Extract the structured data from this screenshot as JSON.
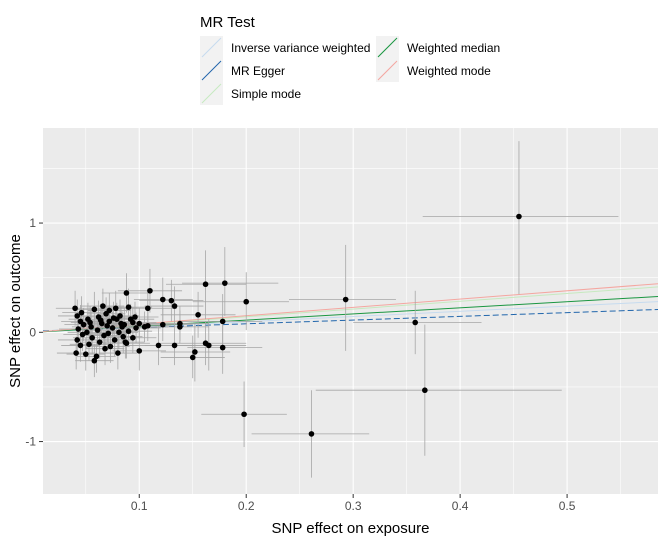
{
  "chart_data": {
    "type": "scatter",
    "title": "",
    "xlabel": "SNP effect on exposure",
    "ylabel": "SNP effect on outcome",
    "xlim": [
      0.01,
      0.585
    ],
    "ylim": [
      -1.48,
      1.87
    ],
    "x_ticks": [
      0.1,
      0.2,
      0.3,
      0.4,
      0.5
    ],
    "y_ticks": [
      -1,
      0,
      1
    ],
    "x_tick_labels": [
      "0.1",
      "0.2",
      "0.3",
      "0.4",
      "0.5"
    ],
    "y_tick_labels": [
      "-1",
      "0",
      "1"
    ],
    "grid": true,
    "legend": {
      "title": "MR Test",
      "placement": "top",
      "entries": [
        {
          "label": "Inverse variance weighted",
          "color": "#c6dbef"
        },
        {
          "label": "MR Egger",
          "color": "#2166ac"
        },
        {
          "label": "Simple mode",
          "color": "#c7e9c0"
        },
        {
          "label": "Weighted median",
          "color": "#1a9641"
        },
        {
          "label": "Weighted mode",
          "color": "#f4a6a0"
        }
      ]
    },
    "lines": [
      {
        "name": "Inverse variance weighted",
        "slope": 0.48,
        "intercept": 0.0,
        "color": "#c6dbef",
        "dashed": false
      },
      {
        "name": "MR Egger",
        "slope": 0.34,
        "intercept": 0.01,
        "color": "#2166ac",
        "dashed": true
      },
      {
        "name": "Simple mode",
        "slope": 0.71,
        "intercept": 0.0,
        "color": "#c7e9c0",
        "dashed": false
      },
      {
        "name": "Weighted median",
        "slope": 0.56,
        "intercept": 0.0,
        "color": "#1a9641",
        "dashed": false
      },
      {
        "name": "Weighted mode",
        "slope": 0.76,
        "intercept": 0.0,
        "color": "#f4a6a0",
        "dashed": false
      }
    ],
    "points": [
      {
        "x": 0.455,
        "y": 1.06,
        "xlo": 0.365,
        "xhi": 0.548,
        "ylo": 0.35,
        "yhi": 1.75
      },
      {
        "x": 0.358,
        "y": 0.09,
        "xlo": 0.3,
        "xhi": 0.42,
        "ylo": -0.2,
        "yhi": 0.38
      },
      {
        "x": 0.367,
        "y": -0.53,
        "xlo": 0.265,
        "xhi": 0.495,
        "ylo": -1.13,
        "yhi": 0.07
      },
      {
        "x": 0.293,
        "y": 0.3,
        "xlo": 0.24,
        "xhi": 0.34,
        "ylo": -0.17,
        "yhi": 0.8
      },
      {
        "x": 0.261,
        "y": -0.93,
        "xlo": 0.205,
        "xhi": 0.315,
        "ylo": -1.33,
        "yhi": -0.53
      },
      {
        "x": 0.198,
        "y": -0.75,
        "xlo": 0.158,
        "xhi": 0.238,
        "ylo": -1.05,
        "yhi": -0.45
      },
      {
        "x": 0.2,
        "y": 0.28,
        "xlo": 0.15,
        "xhi": 0.24,
        "ylo": 0.02,
        "yhi": 0.55
      },
      {
        "x": 0.18,
        "y": 0.45,
        "xlo": 0.14,
        "xhi": 0.23,
        "ylo": 0.15,
        "yhi": 0.78
      },
      {
        "x": 0.162,
        "y": 0.44,
        "xlo": 0.125,
        "xhi": 0.2,
        "ylo": 0.12,
        "yhi": 0.75
      },
      {
        "x": 0.178,
        "y": 0.1,
        "xlo": 0.14,
        "xhi": 0.215,
        "ylo": -0.15,
        "yhi": 0.35
      },
      {
        "x": 0.165,
        "y": -0.12,
        "xlo": 0.13,
        "xhi": 0.2,
        "ylo": -0.35,
        "yhi": 0.12
      },
      {
        "x": 0.178,
        "y": -0.14,
        "xlo": 0.145,
        "xhi": 0.215,
        "ylo": -0.38,
        "yhi": 0.1
      },
      {
        "x": 0.162,
        "y": -0.1,
        "xlo": 0.12,
        "xhi": 0.2,
        "ylo": -0.3,
        "yhi": 0.1
      },
      {
        "x": 0.152,
        "y": -0.18,
        "xlo": 0.12,
        "xhi": 0.185,
        "ylo": -0.45,
        "yhi": 0.08
      },
      {
        "x": 0.15,
        "y": -0.23,
        "xlo": 0.12,
        "xhi": 0.18,
        "ylo": -0.42,
        "yhi": -0.03
      },
      {
        "x": 0.155,
        "y": 0.16,
        "xlo": 0.12,
        "xhi": 0.19,
        "ylo": -0.05,
        "yhi": 0.37
      },
      {
        "x": 0.11,
        "y": 0.38,
        "xlo": 0.08,
        "xhi": 0.14,
        "ylo": 0.18,
        "yhi": 0.58
      },
      {
        "x": 0.122,
        "y": 0.3,
        "xlo": 0.095,
        "xhi": 0.15,
        "ylo": 0.1,
        "yhi": 0.5
      },
      {
        "x": 0.13,
        "y": 0.29,
        "xlo": 0.1,
        "xhi": 0.16,
        "ylo": 0.1,
        "yhi": 0.48
      },
      {
        "x": 0.108,
        "y": 0.22,
        "xlo": 0.08,
        "xhi": 0.135,
        "ylo": 0.05,
        "yhi": 0.4
      },
      {
        "x": 0.133,
        "y": 0.24,
        "xlo": 0.105,
        "xhi": 0.16,
        "ylo": 0.06,
        "yhi": 0.42
      },
      {
        "x": 0.118,
        "y": -0.12,
        "xlo": 0.09,
        "xhi": 0.15,
        "ylo": -0.3,
        "yhi": 0.06
      },
      {
        "x": 0.133,
        "y": -0.12,
        "xlo": 0.105,
        "xhi": 0.16,
        "ylo": -0.3,
        "yhi": 0.06
      },
      {
        "x": 0.1,
        "y": -0.17,
        "xlo": 0.075,
        "xhi": 0.125,
        "ylo": -0.35,
        "yhi": 0.01
      },
      {
        "x": 0.122,
        "y": 0.07,
        "xlo": 0.095,
        "xhi": 0.15,
        "ylo": -0.08,
        "yhi": 0.22
      },
      {
        "x": 0.108,
        "y": 0.06,
        "xlo": 0.085,
        "xhi": 0.13,
        "ylo": -0.08,
        "yhi": 0.2
      },
      {
        "x": 0.138,
        "y": 0.08,
        "xlo": 0.11,
        "xhi": 0.165,
        "ylo": -0.08,
        "yhi": 0.24
      },
      {
        "x": 0.138,
        "y": 0.05,
        "xlo": 0.11,
        "xhi": 0.165,
        "ylo": -0.1,
        "yhi": 0.2
      },
      {
        "x": 0.088,
        "y": 0.36,
        "xlo": 0.065,
        "xhi": 0.11,
        "ylo": 0.18,
        "yhi": 0.54
      },
      {
        "x": 0.09,
        "y": 0.23,
        "xlo": 0.068,
        "xhi": 0.112,
        "ylo": 0.06,
        "yhi": 0.4
      },
      {
        "x": 0.096,
        "y": 0.14,
        "xlo": 0.074,
        "xhi": 0.118,
        "ylo": 0.0,
        "yhi": 0.28
      },
      {
        "x": 0.094,
        "y": 0.09,
        "xlo": 0.072,
        "xhi": 0.116,
        "ylo": -0.05,
        "yhi": 0.23
      },
      {
        "x": 0.097,
        "y": 0.04,
        "xlo": 0.075,
        "xhi": 0.12,
        "ylo": -0.1,
        "yhi": 0.18
      },
      {
        "x": 0.09,
        "y": 0.01,
        "xlo": 0.068,
        "xhi": 0.112,
        "ylo": -0.13,
        "yhi": 0.15
      },
      {
        "x": 0.094,
        "y": -0.05,
        "xlo": 0.072,
        "xhi": 0.116,
        "ylo": -0.19,
        "yhi": 0.09
      },
      {
        "x": 0.088,
        "y": -0.1,
        "xlo": 0.066,
        "xhi": 0.11,
        "ylo": -0.24,
        "yhi": 0.04
      },
      {
        "x": 0.092,
        "y": 0.12,
        "xlo": 0.07,
        "xhi": 0.114,
        "ylo": -0.02,
        "yhi": 0.26
      },
      {
        "x": 0.084,
        "y": 0.05,
        "xlo": 0.062,
        "xhi": 0.106,
        "ylo": -0.09,
        "yhi": 0.19
      },
      {
        "x": 0.1,
        "y": 0.08,
        "xlo": 0.078,
        "xhi": 0.122,
        "ylo": -0.06,
        "yhi": 0.22
      },
      {
        "x": 0.105,
        "y": 0.05,
        "xlo": 0.083,
        "xhi": 0.127,
        "ylo": -0.09,
        "yhi": 0.19
      },
      {
        "x": 0.078,
        "y": 0.22,
        "xlo": 0.058,
        "xhi": 0.098,
        "ylo": 0.06,
        "yhi": 0.38
      },
      {
        "x": 0.072,
        "y": 0.2,
        "xlo": 0.052,
        "xhi": 0.092,
        "ylo": 0.04,
        "yhi": 0.36
      },
      {
        "x": 0.066,
        "y": 0.24,
        "xlo": 0.046,
        "xhi": 0.086,
        "ylo": 0.08,
        "yhi": 0.4
      },
      {
        "x": 0.058,
        "y": 0.21,
        "xlo": 0.038,
        "xhi": 0.078,
        "ylo": 0.05,
        "yhi": 0.37
      },
      {
        "x": 0.04,
        "y": 0.22,
        "xlo": 0.022,
        "xhi": 0.058,
        "ylo": 0.06,
        "yhi": 0.38
      },
      {
        "x": 0.042,
        "y": 0.15,
        "xlo": 0.024,
        "xhi": 0.06,
        "ylo": 0.0,
        "yhi": 0.3
      },
      {
        "x": 0.045,
        "y": 0.1,
        "xlo": 0.027,
        "xhi": 0.063,
        "ylo": -0.05,
        "yhi": 0.25
      },
      {
        "x": 0.048,
        "y": 0.07,
        "xlo": 0.03,
        "xhi": 0.066,
        "ylo": -0.08,
        "yhi": 0.22
      },
      {
        "x": 0.043,
        "y": 0.03,
        "xlo": 0.025,
        "xhi": 0.061,
        "ylo": -0.12,
        "yhi": 0.18
      },
      {
        "x": 0.047,
        "y": -0.02,
        "xlo": 0.029,
        "xhi": 0.065,
        "ylo": -0.17,
        "yhi": 0.13
      },
      {
        "x": 0.042,
        "y": -0.07,
        "xlo": 0.024,
        "xhi": 0.06,
        "ylo": -0.22,
        "yhi": 0.08
      },
      {
        "x": 0.045,
        "y": -0.12,
        "xlo": 0.027,
        "xhi": 0.063,
        "ylo": -0.27,
        "yhi": 0.03
      },
      {
        "x": 0.041,
        "y": -0.19,
        "xlo": 0.023,
        "xhi": 0.059,
        "ylo": -0.34,
        "yhi": -0.04
      },
      {
        "x": 0.052,
        "y": 0.12,
        "xlo": 0.034,
        "xhi": 0.07,
        "ylo": -0.03,
        "yhi": 0.27
      },
      {
        "x": 0.055,
        "y": 0.05,
        "xlo": 0.037,
        "xhi": 0.073,
        "ylo": -0.1,
        "yhi": 0.2
      },
      {
        "x": 0.051,
        "y": 0.0,
        "xlo": 0.033,
        "xhi": 0.069,
        "ylo": -0.15,
        "yhi": 0.15
      },
      {
        "x": 0.056,
        "y": -0.05,
        "xlo": 0.038,
        "xhi": 0.074,
        "ylo": -0.2,
        "yhi": 0.1
      },
      {
        "x": 0.053,
        "y": -0.11,
        "xlo": 0.035,
        "xhi": 0.071,
        "ylo": -0.26,
        "yhi": 0.04
      },
      {
        "x": 0.05,
        "y": -0.2,
        "xlo": 0.032,
        "xhi": 0.068,
        "ylo": -0.35,
        "yhi": -0.05
      },
      {
        "x": 0.062,
        "y": 0.14,
        "xlo": 0.044,
        "xhi": 0.08,
        "ylo": -0.01,
        "yhi": 0.29
      },
      {
        "x": 0.065,
        "y": 0.08,
        "xlo": 0.047,
        "xhi": 0.083,
        "ylo": -0.07,
        "yhi": 0.23
      },
      {
        "x": 0.061,
        "y": 0.02,
        "xlo": 0.043,
        "xhi": 0.079,
        "ylo": -0.13,
        "yhi": 0.17
      },
      {
        "x": 0.067,
        "y": -0.03,
        "xlo": 0.049,
        "xhi": 0.085,
        "ylo": -0.18,
        "yhi": 0.12
      },
      {
        "x": 0.063,
        "y": -0.09,
        "xlo": 0.045,
        "xhi": 0.081,
        "ylo": -0.24,
        "yhi": 0.06
      },
      {
        "x": 0.068,
        "y": -0.15,
        "xlo": 0.05,
        "xhi": 0.086,
        "ylo": -0.3,
        "yhi": 0.0
      },
      {
        "x": 0.06,
        "y": -0.22,
        "xlo": 0.042,
        "xhi": 0.078,
        "ylo": -0.37,
        "yhi": -0.07
      },
      {
        "x": 0.072,
        "y": 0.1,
        "xlo": 0.054,
        "xhi": 0.09,
        "ylo": -0.05,
        "yhi": 0.25
      },
      {
        "x": 0.075,
        "y": 0.04,
        "xlo": 0.057,
        "xhi": 0.093,
        "ylo": -0.11,
        "yhi": 0.19
      },
      {
        "x": 0.071,
        "y": -0.01,
        "xlo": 0.053,
        "xhi": 0.089,
        "ylo": -0.16,
        "yhi": 0.14
      },
      {
        "x": 0.077,
        "y": -0.07,
        "xlo": 0.059,
        "xhi": 0.095,
        "ylo": -0.22,
        "yhi": 0.08
      },
      {
        "x": 0.073,
        "y": -0.13,
        "xlo": 0.055,
        "xhi": 0.091,
        "ylo": -0.28,
        "yhi": 0.02
      },
      {
        "x": 0.08,
        "y": -0.19,
        "xlo": 0.062,
        "xhi": 0.098,
        "ylo": -0.34,
        "yhi": -0.04
      },
      {
        "x": 0.058,
        "y": -0.26,
        "xlo": 0.04,
        "xhi": 0.076,
        "ylo": -0.41,
        "yhi": -0.11
      },
      {
        "x": 0.082,
        "y": 0.15,
        "xlo": 0.064,
        "xhi": 0.1,
        "ylo": 0.0,
        "yhi": 0.3
      },
      {
        "x": 0.083,
        "y": 0.08,
        "xlo": 0.065,
        "xhi": 0.101,
        "ylo": -0.07,
        "yhi": 0.23
      },
      {
        "x": 0.081,
        "y": 0.0,
        "xlo": 0.063,
        "xhi": 0.099,
        "ylo": -0.15,
        "yhi": 0.15
      },
      {
        "x": 0.085,
        "y": -0.04,
        "xlo": 0.067,
        "xhi": 0.103,
        "ylo": -0.19,
        "yhi": 0.11
      },
      {
        "x": 0.079,
        "y": 0.12,
        "xlo": 0.061,
        "xhi": 0.097,
        "ylo": -0.03,
        "yhi": 0.27
      },
      {
        "x": 0.069,
        "y": 0.17,
        "xlo": 0.051,
        "xhi": 0.087,
        "ylo": 0.02,
        "yhi": 0.32
      },
      {
        "x": 0.046,
        "y": 0.18,
        "xlo": 0.028,
        "xhi": 0.064,
        "ylo": 0.03,
        "yhi": 0.33
      },
      {
        "x": 0.054,
        "y": 0.09,
        "xlo": 0.036,
        "xhi": 0.072,
        "ylo": -0.06,
        "yhi": 0.24
      },
      {
        "x": 0.064,
        "y": 0.11,
        "xlo": 0.046,
        "xhi": 0.082,
        "ylo": -0.04,
        "yhi": 0.26
      },
      {
        "x": 0.07,
        "y": 0.06,
        "xlo": 0.052,
        "xhi": 0.088,
        "ylo": -0.09,
        "yhi": 0.21
      },
      {
        "x": 0.076,
        "y": 0.13,
        "xlo": 0.058,
        "xhi": 0.094,
        "ylo": -0.02,
        "yhi": 0.28
      },
      {
        "x": 0.087,
        "y": -0.09,
        "xlo": 0.069,
        "xhi": 0.105,
        "ylo": -0.24,
        "yhi": 0.06
      },
      {
        "x": 0.086,
        "y": 0.07,
        "xlo": 0.068,
        "xhi": 0.104,
        "ylo": -0.08,
        "yhi": 0.22
      }
    ]
  }
}
